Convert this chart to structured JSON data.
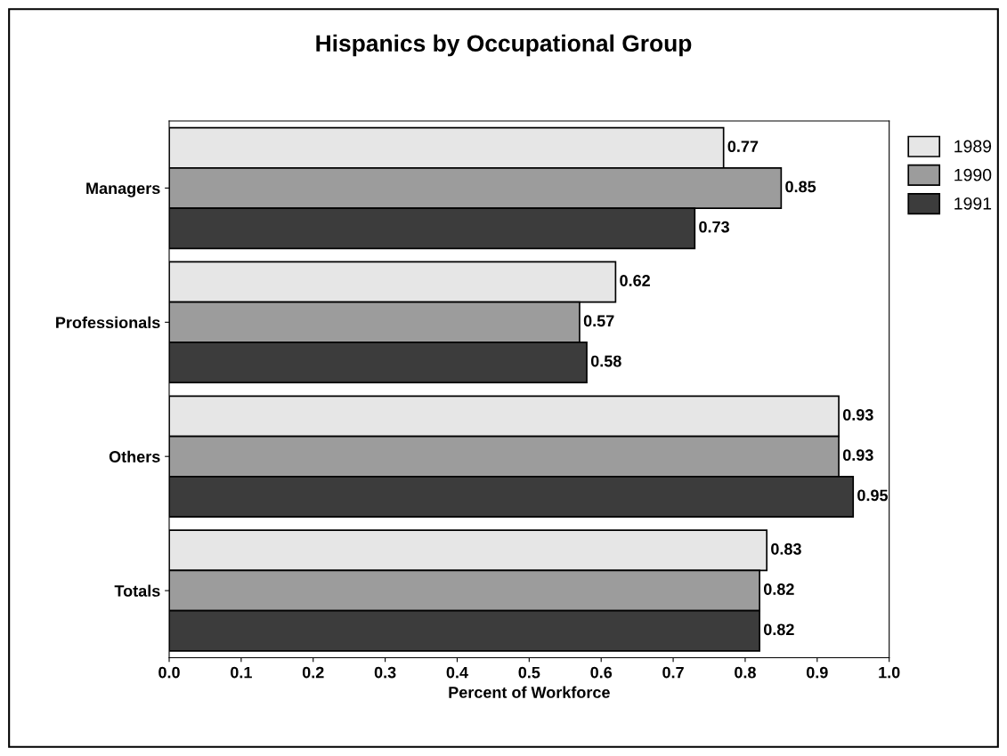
{
  "chart_data": {
    "type": "bar",
    "orientation": "horizontal",
    "title": "Hispanics by Occupational Group",
    "xlabel": "Percent of Workforce",
    "categories": [
      "Managers",
      "Professionals",
      "Others",
      "Totals"
    ],
    "series": [
      {
        "name": "1989",
        "color": "#e6e6e6",
        "values": [
          0.77,
          0.62,
          0.93,
          0.83
        ]
      },
      {
        "name": "1990",
        "color": "#9c9c9c",
        "values": [
          0.85,
          0.57,
          0.93,
          0.82
        ]
      },
      {
        "name": "1991",
        "color": "#3c3c3c",
        "values": [
          0.73,
          0.58,
          0.95,
          0.82
        ]
      }
    ],
    "xlim": [
      0,
      1
    ],
    "xticks": [
      {
        "value": 0,
        "label": "0.0"
      },
      0.1,
      0.2,
      0.3,
      0.4,
      0.5,
      0.6,
      0.7,
      0.8,
      0.9,
      {
        "value": 1,
        "label": "1.0"
      }
    ],
    "data_labels": true,
    "grid": false,
    "legend": "top right"
  }
}
